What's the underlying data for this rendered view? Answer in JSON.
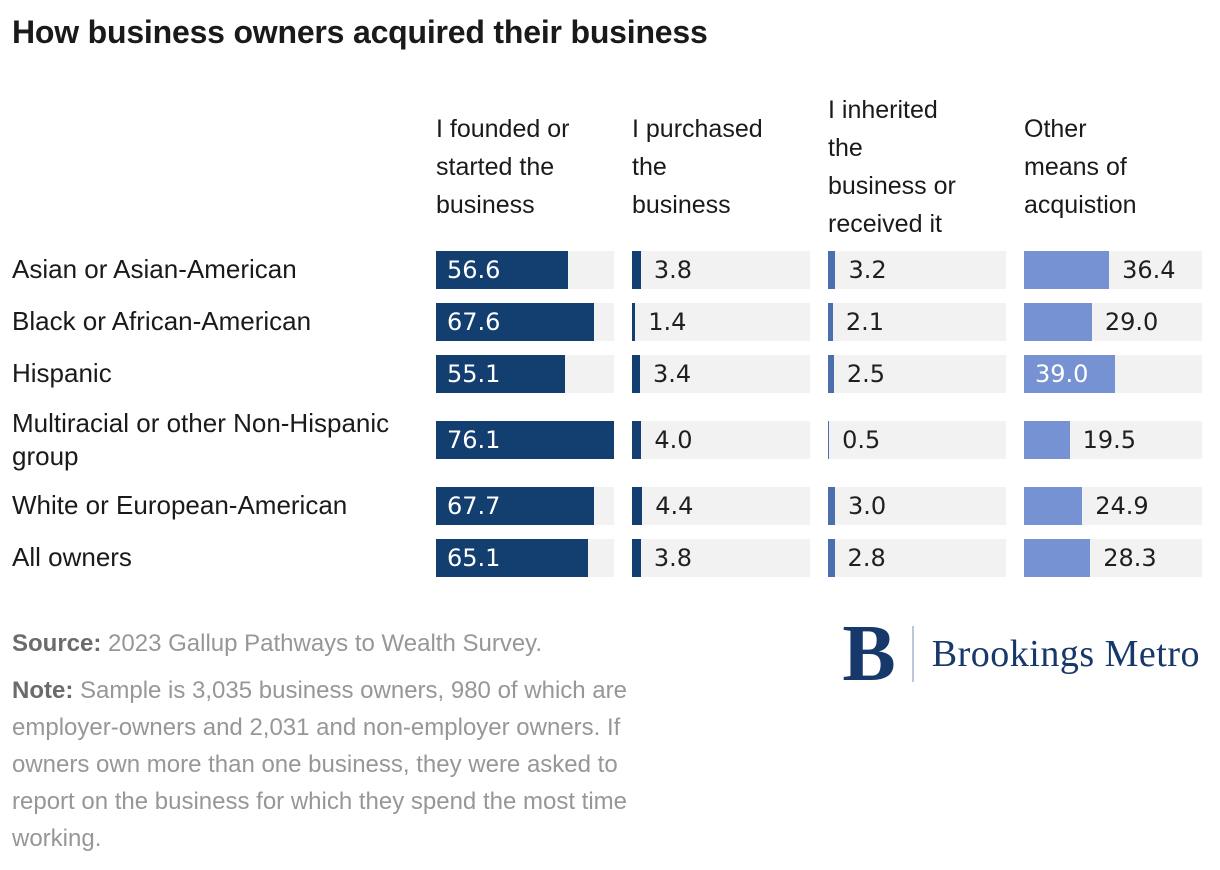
{
  "title": "How business owners acquired their business",
  "chart_data": {
    "type": "bar",
    "orientation": "horizontal",
    "unit": "percent",
    "axis_max": 76.1,
    "track_color": "#f2f2f2",
    "value_label_color_inside": "#ffffff",
    "value_label_color_outside": "#1f1f1f",
    "columns": [
      {
        "label": "I founded or\nstarted the\nbusiness",
        "color": "#123e70"
      },
      {
        "label": "I purchased\nthe\nbusiness",
        "color": "#123e70"
      },
      {
        "label": "I inherited\nthe\nbusiness or\nreceived it",
        "color": "#4a6fae"
      },
      {
        "label": "Other\nmeans of\nacquistion",
        "color": "#7692d2"
      }
    ],
    "rows": [
      {
        "label": "Asian or Asian-American",
        "values": [
          56.6,
          3.8,
          3.2,
          36.4
        ],
        "label_inside": [
          true,
          false,
          false,
          false
        ]
      },
      {
        "label": "Black or African-American",
        "values": [
          67.6,
          1.4,
          2.1,
          29.0
        ],
        "label_inside": [
          true,
          false,
          false,
          false
        ]
      },
      {
        "label": "Hispanic",
        "values": [
          55.1,
          3.4,
          2.5,
          39.0
        ],
        "label_inside": [
          true,
          false,
          false,
          true
        ]
      },
      {
        "label": "Multiracial or other Non-Hispanic group",
        "values": [
          76.1,
          4.0,
          0.5,
          19.5
        ],
        "label_inside": [
          true,
          false,
          false,
          false
        ]
      },
      {
        "label": "White or European-American",
        "values": [
          67.7,
          4.4,
          3.0,
          24.9
        ],
        "label_inside": [
          true,
          false,
          false,
          false
        ]
      },
      {
        "label": "All owners",
        "values": [
          65.1,
          3.8,
          2.8,
          28.3
        ],
        "label_inside": [
          true,
          false,
          false,
          false
        ]
      }
    ]
  },
  "footer": {
    "source_label": "Source:",
    "source_text": "2023 Gallup Pathways to Wealth Survey.",
    "note_label": "Note:",
    "note_text": "Sample is 3,035 business owners, 980 of which are\nemployer-owners and 2,031 and non-employer owners. If\nowners own more than one business, they were asked to\nreport on the business for which they spend the most time\nworking."
  },
  "logo": {
    "monogram": "B",
    "name": "Brookings Metro",
    "color": "#17386a"
  }
}
